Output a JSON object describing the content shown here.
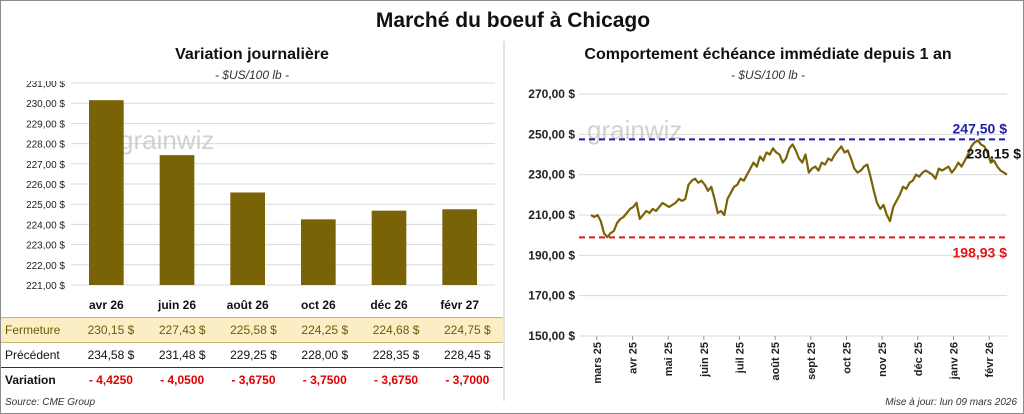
{
  "title": "Marché du boeuf à Chicago",
  "left": {
    "title": "Variation journalière",
    "subtitle": "- $US/100 lb -"
  },
  "right": {
    "title": "Comportement  échéance immédiate depuis 1 an",
    "subtitle": "- $US/100 lb -"
  },
  "watermark": "grainwiz",
  "colors": {
    "bar": "#7a6206",
    "line": "#7a6206",
    "high_line": "#1f1fa8",
    "low_line": "#e51515",
    "close_row_bg": "#fbeec4",
    "variation": "#e00000"
  },
  "chart_data": [
    {
      "type": "bar",
      "title": "Variation journalière",
      "categories": [
        "avr 26",
        "juin 26",
        "août 26",
        "oct 26",
        "déc 26",
        "févr 27"
      ],
      "values": [
        230.15,
        227.43,
        225.58,
        224.25,
        224.68,
        224.75
      ],
      "ylim": [
        221,
        231
      ],
      "yticks": [
        "221,00 $",
        "222,00 $",
        "223,00 $",
        "224,00 $",
        "225,00 $",
        "226,00 $",
        "227,00 $",
        "228,00 $",
        "229,00 $",
        "230,00 $",
        "231,00 $"
      ],
      "grid": true
    },
    {
      "type": "line",
      "title": "Comportement  échéance immédiate depuis 1 an",
      "ylim": [
        150,
        270
      ],
      "yticks": [
        "150,00 $",
        "170,00 $",
        "190,00 $",
        "210,00 $",
        "230,00 $",
        "250,00 $",
        "270,00 $"
      ],
      "xticks": [
        "mars 25",
        "avr 25",
        "mai 25",
        "juin 25",
        "juil 25",
        "août 25",
        "sept 25",
        "oct 25",
        "nov 25",
        "déc 25",
        "janv 26",
        "févr 26"
      ],
      "grid": true,
      "series": [
        {
          "values": [
            210,
            209,
            210,
            207,
            201,
            199,
            201,
            202,
            206,
            208,
            209,
            211,
            213,
            214,
            216,
            208,
            210,
            212,
            211,
            213,
            212,
            214,
            216,
            215,
            214,
            215,
            216,
            218,
            217,
            218,
            225,
            227,
            228,
            226,
            227,
            225,
            222,
            224,
            218,
            211,
            212,
            210,
            218,
            221,
            224,
            225,
            228,
            227,
            230,
            233,
            236,
            234,
            239,
            237,
            241,
            240,
            243,
            241,
            240,
            236,
            238,
            243,
            245,
            242,
            238,
            236,
            240,
            231,
            233,
            234,
            232,
            236,
            235,
            238,
            237,
            240,
            242,
            244,
            241,
            242,
            238,
            233,
            231,
            232,
            234,
            235,
            229,
            222,
            216,
            213,
            215,
            210,
            207,
            214,
            217,
            220,
            224,
            223,
            226,
            227,
            230,
            229,
            231,
            232,
            231,
            230,
            228,
            233,
            232,
            233,
            234,
            231,
            233,
            236,
            234,
            237,
            240,
            244,
            246,
            247,
            245,
            244,
            241,
            236,
            237,
            234,
            232,
            231,
            230
          ]
        }
      ],
      "high": {
        "value": 247.5,
        "label": "247,50 $"
      },
      "low": {
        "value": 198.93,
        "label": "198,93 $"
      },
      "last": {
        "value": 230.15,
        "label": "230,15 $"
      }
    }
  ],
  "table": {
    "rows": [
      {
        "label": "Fermeture",
        "values": [
          "230,15 $",
          "227,43 $",
          "225,58 $",
          "224,25 $",
          "224,68 $",
          "224,75 $"
        ]
      },
      {
        "label": "Précédent",
        "values": [
          "234,58 $",
          "231,48 $",
          "229,25 $",
          "228,00 $",
          "228,35 $",
          "228,45 $"
        ]
      },
      {
        "label": "Variation",
        "values": [
          "- 4,4250",
          "- 4,0500",
          "- 3,6750",
          "- 3,7500",
          "- 3,6750",
          "- 3,7000"
        ]
      }
    ]
  },
  "footer": {
    "source": "Source: CME Group",
    "updated": "Mise à jour: lun 09 mars 2026"
  }
}
